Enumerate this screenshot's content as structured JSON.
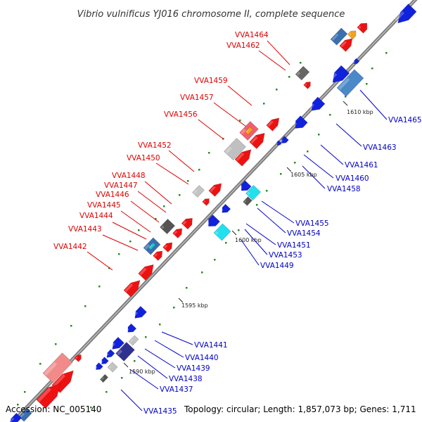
{
  "title": "Vibrio vulnificus YJ016 chromosome II, complete sequence",
  "footer": {
    "accession": "Accession: NC_005140",
    "summary": "Topology: circular; Length: 1,857,073 bp; Genes: 1,711"
  },
  "colors": {
    "forward_cds": "#ee1111",
    "reverse_cds": "#1122dd",
    "forward_label": "#e00000",
    "reverse_label": "#0000cc",
    "backbone": "#888888",
    "gc_dot": "#2a8a2a"
  },
  "ticks": [
    "1610 kbp",
    "1605 kbp",
    "1600 kbp",
    "1595 kbp",
    "1590 kbp"
  ],
  "forward_labels": [
    "VVA1464",
    "VVA1462",
    "VVA1459",
    "VVA1457",
    "VVA1456",
    "VVA1452",
    "VVA1450",
    "VVA1448",
    "VVA1447",
    "VVA1446",
    "VVA1445",
    "VVA1444",
    "VVA1443",
    "VVA1442"
  ],
  "reverse_labels": [
    "VVA1465",
    "VVA1463",
    "VVA1461",
    "VVA1460",
    "VVA1458",
    "VVA1455",
    "VVA1454",
    "VVA1451",
    "VVA1453",
    "VVA1449",
    "VVA1441",
    "VVA1440",
    "VVA1439",
    "VVA1438",
    "VVA1437",
    "VVA1435"
  ]
}
